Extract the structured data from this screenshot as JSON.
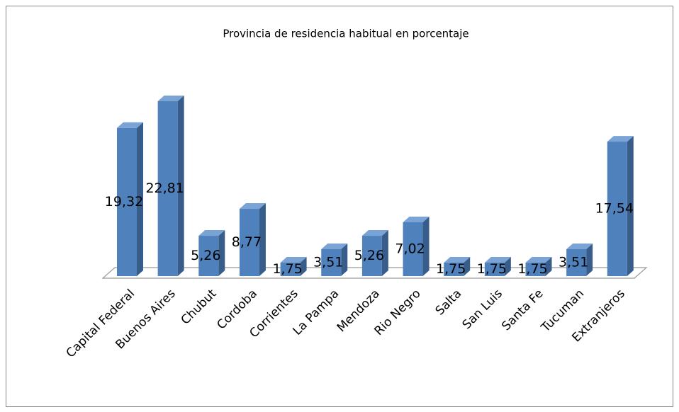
{
  "chart_data": {
    "type": "bar3d",
    "title": "Provincia de residencia habitual en porcentaje",
    "categories": [
      "Capital Federal",
      "Buenos Aires",
      "Chubut",
      "Cordoba",
      "Corrientes",
      "La Pampa",
      "Mendoza",
      "Rio Negro",
      "Salta",
      "San Luis",
      "Santa Fe",
      "Tucuman",
      "Extranjeros"
    ],
    "values": [
      19.32,
      22.81,
      5.26,
      8.77,
      1.75,
      3.51,
      5.26,
      7.02,
      1.75,
      1.75,
      1.75,
      3.51,
      17.54
    ],
    "value_labels": [
      "19,32",
      "22,81",
      "5,26",
      "8,77",
      "1,75",
      "3,51",
      "5,26",
      "7,02",
      "1,75",
      "1,75",
      "1,75",
      "3,51",
      "17,54"
    ],
    "color": "#4f81bd"
  }
}
